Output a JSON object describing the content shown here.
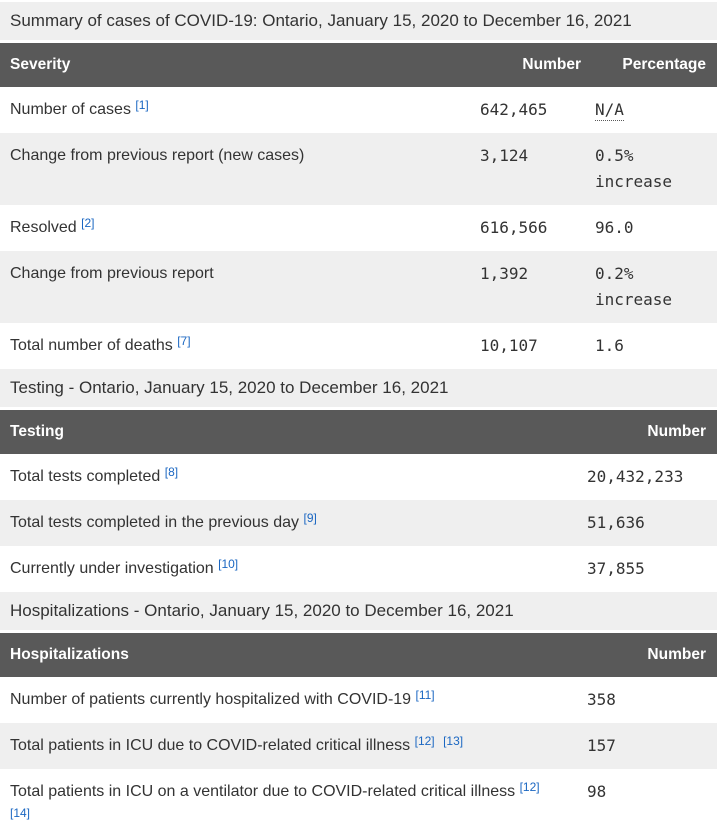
{
  "colors": {
    "text": "#333333",
    "link": "#1b67c2",
    "header_bg": "#595959",
    "header_text": "#ffffff",
    "stripe_bg": "#efefef",
    "page_bg": "#ffffff"
  },
  "tables": [
    {
      "caption": "Summary of cases of COVID-19: Ontario, January 15, 2020 to December 16, 2021",
      "columns": [
        "Severity",
        "Number",
        "Percentage"
      ],
      "rows": [
        {
          "label": "Number of cases",
          "footnotes": [
            "[1]"
          ],
          "number": "642,465",
          "percentage": {
            "value": "N/A",
            "abbr": true
          }
        },
        {
          "label": "Change from previous report (new cases)",
          "footnotes": [],
          "number": "3,124",
          "percentage": {
            "value": "0.5%",
            "note": "increase"
          }
        },
        {
          "label": "Resolved",
          "footnotes": [
            "[2]"
          ],
          "number": "616,566",
          "percentage": {
            "value": "96.0"
          }
        },
        {
          "label": "Change from previous report",
          "footnotes": [],
          "number": "1,392",
          "percentage": {
            "value": "0.2%",
            "note": "increase"
          }
        },
        {
          "label": "Total number of deaths",
          "footnotes": [
            "[7]"
          ],
          "number": "10,107",
          "percentage": {
            "value": "1.6"
          }
        }
      ]
    },
    {
      "caption": "Testing - Ontario, January 15, 2020 to December 16, 2021",
      "columns": [
        "Testing",
        "Number"
      ],
      "rows": [
        {
          "label": "Total tests completed",
          "footnotes": [
            "[8]"
          ],
          "number": "20,432,233"
        },
        {
          "label": "Total tests completed in the previous day",
          "footnotes": [
            "[9]"
          ],
          "number": "51,636"
        },
        {
          "label": "Currently under investigation",
          "footnotes": [
            "[10]"
          ],
          "number": "37,855"
        }
      ]
    },
    {
      "caption": "Hospitalizations - Ontario, January 15, 2020 to December 16, 2021",
      "columns": [
        "Hospitalizations",
        "Number"
      ],
      "rows": [
        {
          "label": "Number of patients currently hospitalized with COVID-19",
          "footnotes": [
            "[11]"
          ],
          "number": "358"
        },
        {
          "label": "Total patients in ICU due to COVID-related critical illness",
          "footnotes": [
            "[12]",
            "[13]"
          ],
          "number": "157"
        },
        {
          "label": "Total patients in ICU on a ventilator due to COVID-related critical illness",
          "footnotes": [
            "[12]",
            "[14]"
          ],
          "number": "98"
        }
      ]
    }
  ]
}
